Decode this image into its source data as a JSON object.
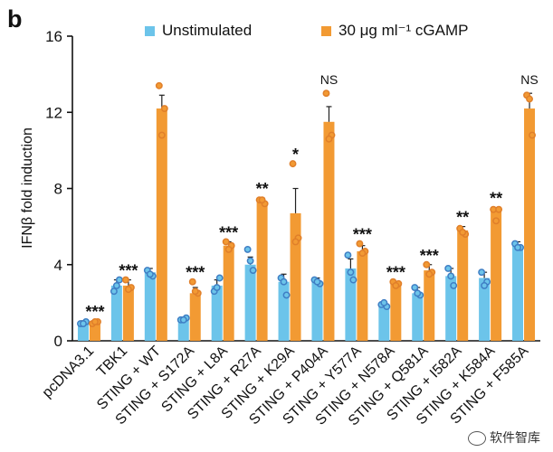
{
  "panel_label": "b",
  "watermark": "软件智库",
  "colors": {
    "unstim": "#6cc4ea",
    "cgamp": "#f29a33",
    "unstim_dot": "#3f7ec4",
    "cgamp_dot": "#e07f2a"
  },
  "chart_data": {
    "type": "bar",
    "ylabel": "IFNβ fold induction",
    "ylim": [
      0,
      16
    ],
    "yticks": [
      0,
      4,
      8,
      12,
      16
    ],
    "legend": {
      "position": "top",
      "entries": [
        "Unstimulated",
        "30 μg ml⁻¹ cGAMP"
      ]
    },
    "categories": [
      "pcDNA3.1",
      "TBK1",
      "STING + WT",
      "STING + S172A",
      "STING + L8A",
      "STING + R27A",
      "STING + K29A",
      "STING + P404A",
      "STING + Y577A",
      "STING + N578A",
      "STING + Q581A",
      "STING + I582A",
      "STING + K584A",
      "STING + F585A"
    ],
    "series": [
      {
        "name": "Unstimulated",
        "values": [
          0.95,
          2.9,
          3.6,
          1.1,
          2.9,
          4.0,
          3.1,
          3.1,
          3.8,
          1.9,
          2.5,
          3.4,
          3.3,
          5.0
        ],
        "errors": [
          0.1,
          0.3,
          0.2,
          0.1,
          0.3,
          0.4,
          0.4,
          0.2,
          0.5,
          0.15,
          0.3,
          0.4,
          0.3,
          0.2
        ],
        "points": [
          [
            0.9,
            1.0,
            0.9
          ],
          [
            2.6,
            3.2,
            2.9
          ],
          [
            3.7,
            3.4,
            3.5
          ],
          [
            1.1,
            1.2,
            1.1
          ],
          [
            2.6,
            3.3,
            2.8
          ],
          [
            4.8,
            3.7,
            4.2
          ],
          [
            3.3,
            2.4,
            3.1
          ],
          [
            3.2,
            3.0,
            3.1
          ],
          [
            4.5,
            3.2,
            3.6
          ],
          [
            1.9,
            1.8,
            2.0
          ],
          [
            2.8,
            2.4,
            2.5
          ],
          [
            3.8,
            2.9,
            3.4
          ],
          [
            3.6,
            3.1,
            2.9
          ],
          [
            5.1,
            4.9,
            4.9
          ]
        ]
      },
      {
        "name": "30 μg ml⁻¹ cGAMP",
        "values": [
          0.95,
          2.9,
          12.2,
          2.5,
          5.0,
          7.3,
          6.7,
          11.5,
          4.7,
          3.0,
          3.7,
          5.8,
          6.8,
          12.2
        ],
        "errors": [
          0.1,
          0.3,
          0.7,
          0.3,
          0.2,
          0.2,
          1.3,
          0.8,
          0.3,
          0.1,
          0.3,
          0.2,
          0.2,
          0.8
        ],
        "points": [
          [
            0.9,
            1.0,
            1.0
          ],
          [
            3.2,
            2.8,
            2.7
          ],
          [
            13.4,
            12.2,
            10.8
          ],
          [
            3.1,
            2.5,
            2.6
          ],
          [
            5.2,
            5.0,
            4.8
          ],
          [
            7.4,
            7.2,
            7.4
          ],
          [
            9.3,
            5.4,
            5.2
          ],
          [
            13.0,
            10.8,
            10.6
          ],
          [
            5.1,
            4.7,
            4.6
          ],
          [
            3.1,
            3.0,
            2.9
          ],
          [
            4.0,
            3.6,
            3.5
          ],
          [
            5.9,
            5.6,
            5.7
          ],
          [
            6.9,
            6.9,
            6.3
          ],
          [
            12.9,
            10.8,
            12.7
          ]
        ]
      }
    ],
    "annotations": [
      "***",
      "***",
      "",
      "***",
      "***",
      "**",
      "*",
      "NS",
      "***",
      "***",
      "***",
      "**",
      "**",
      "NS"
    ]
  }
}
